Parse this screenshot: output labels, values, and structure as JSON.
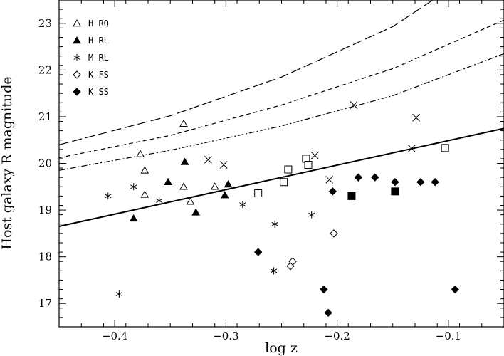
{
  "chart_data": {
    "type": "scatter",
    "xlabel": "log z",
    "ylabel": "Host galaxy R magnitude",
    "xlim": [
      -0.45,
      -0.05
    ],
    "ylim": [
      16.5,
      23.5
    ],
    "xticks": [
      -0.4,
      -0.3,
      -0.2,
      -0.1
    ],
    "xtick_labels": [
      "−0.4",
      "−0.3",
      "−0.2",
      "−0.1"
    ],
    "yticks": [
      17,
      18,
      19,
      20,
      21,
      22,
      23
    ],
    "ytick_labels": [
      "17",
      "18",
      "19",
      "20",
      "21",
      "22",
      "23"
    ],
    "grid": false,
    "legend_position": "top-left",
    "legend": [
      {
        "marker": "triangle-open",
        "label": "H RQ"
      },
      {
        "marker": "triangle-filled",
        "label": "H RL"
      },
      {
        "marker": "asterisk",
        "label": "M RL"
      },
      {
        "marker": "diamond-open",
        "label": "K FS"
      },
      {
        "marker": "diamond-filled",
        "label": "K SS"
      }
    ],
    "series": [
      {
        "name": "H RQ",
        "marker": "triangle-open",
        "points": [
          [
            -0.338,
            20.85
          ],
          [
            -0.377,
            20.2
          ],
          [
            -0.373,
            19.85
          ],
          [
            -0.338,
            19.5
          ],
          [
            -0.373,
            19.33
          ],
          [
            -0.332,
            19.18
          ],
          [
            -0.31,
            19.5
          ]
        ]
      },
      {
        "name": "H RL",
        "marker": "triangle-filled",
        "points": [
          [
            -0.383,
            18.82
          ],
          [
            -0.352,
            19.6
          ],
          [
            -0.337,
            20.03
          ],
          [
            -0.327,
            18.95
          ],
          [
            -0.301,
            19.32
          ],
          [
            -0.298,
            19.55
          ]
        ]
      },
      {
        "name": "M RL",
        "marker": "asterisk",
        "points": [
          [
            -0.406,
            19.3
          ],
          [
            -0.396,
            17.2
          ],
          [
            -0.383,
            19.5
          ],
          [
            -0.36,
            19.2
          ],
          [
            -0.285,
            19.12
          ],
          [
            -0.256,
            18.7
          ],
          [
            -0.257,
            17.7
          ],
          [
            -0.223,
            18.9
          ]
        ]
      },
      {
        "name": "K FS",
        "marker": "diamond-open",
        "points": [
          [
            -0.242,
            17.8
          ],
          [
            -0.24,
            17.9
          ],
          [
            -0.203,
            18.5
          ]
        ]
      },
      {
        "name": "K SS",
        "marker": "diamond-filled",
        "points": [
          [
            -0.271,
            18.1
          ],
          [
            -0.212,
            17.3
          ],
          [
            -0.208,
            16.8
          ],
          [
            -0.204,
            19.4
          ],
          [
            -0.181,
            19.7
          ],
          [
            -0.166,
            19.7
          ],
          [
            -0.148,
            19.6
          ],
          [
            -0.125,
            19.6
          ],
          [
            -0.112,
            19.6
          ],
          [
            -0.094,
            17.3
          ]
        ]
      },
      {
        "marker": "square-open",
        "points": [
          [
            -0.271,
            19.36
          ],
          [
            -0.248,
            19.6
          ],
          [
            -0.244,
            19.87
          ],
          [
            -0.228,
            20.1
          ],
          [
            -0.226,
            19.97
          ],
          [
            -0.103,
            20.33
          ]
        ]
      },
      {
        "marker": "square-filled",
        "points": [
          [
            -0.187,
            19.3
          ],
          [
            -0.148,
            19.4
          ]
        ]
      },
      {
        "marker": "cross",
        "points": [
          [
            -0.316,
            20.08
          ],
          [
            -0.302,
            19.97
          ],
          [
            -0.22,
            20.17
          ],
          [
            -0.207,
            19.65
          ],
          [
            -0.185,
            21.25
          ],
          [
            -0.133,
            20.32
          ],
          [
            -0.129,
            20.98
          ]
        ]
      }
    ],
    "lines": [
      {
        "style": "solid",
        "x": [
          -0.45,
          -0.05
        ],
        "y": [
          18.65,
          20.75
        ]
      },
      {
        "style": "dash-dot",
        "x": [
          -0.45,
          -0.35,
          -0.25,
          -0.15,
          -0.05
        ],
        "y": [
          19.85,
          20.28,
          20.8,
          21.45,
          22.35
        ]
      },
      {
        "style": "short-dash",
        "x": [
          -0.45,
          -0.35,
          -0.25,
          -0.15,
          -0.05
        ],
        "y": [
          20.12,
          20.6,
          21.25,
          22.03,
          23.07
        ]
      },
      {
        "style": "long-dash",
        "x": [
          -0.45,
          -0.35,
          -0.25,
          -0.15,
          -0.114
        ],
        "y": [
          20.4,
          21.02,
          21.85,
          22.93,
          23.5
        ]
      }
    ]
  }
}
